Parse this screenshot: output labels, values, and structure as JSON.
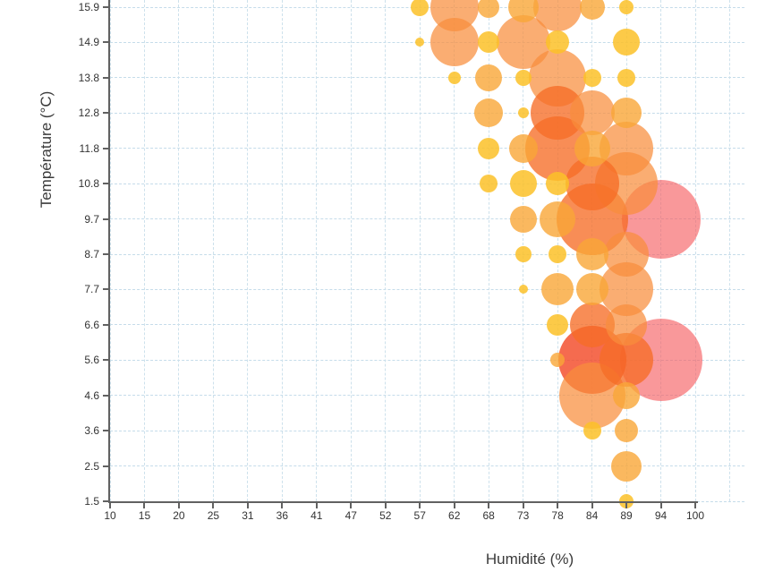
{
  "chart": {
    "type": "bubble",
    "x_axis": {
      "title": "Humidité (%)"
    },
    "y_axis": {
      "title": "Température (°C)"
    },
    "colors": {
      "gold": "rgba(251,193,40,0.85)",
      "orange": "rgba(249,166,55,0.8)",
      "bigOrange": "rgba(248,142,60,0.72)",
      "deepOrange": "rgba(246,109,38,0.78)",
      "redOrange": "rgba(242,70,35,0.8)",
      "salmon": "rgba(246,88,92,0.62)"
    },
    "grid_color": "#c5dcea",
    "axis_color": "#616161"
  },
  "chart_data": {
    "type": "scatter",
    "title": "",
    "xlabel": "Humidité (%)",
    "ylabel": "Température (°C)",
    "x_tick_values": [
      10,
      15,
      20,
      25,
      31,
      36,
      41,
      47,
      52,
      57,
      62,
      68,
      73,
      78,
      84,
      89,
      94,
      100
    ],
    "y_tick_values": [
      15.9,
      14.9,
      13.8,
      12.8,
      11.8,
      10.8,
      9.7,
      8.7,
      7.7,
      6.6,
      5.6,
      4.6,
      3.6,
      2.5,
      1.5
    ],
    "x_tick_labels": [
      "10",
      "15",
      "20",
      "25",
      "31",
      "36",
      "41",
      "47",
      "52",
      "57",
      "62",
      "68",
      "73",
      "78",
      "84",
      "89",
      "94",
      "100"
    ],
    "y_tick_labels": [
      "15.9",
      "14.9",
      "13.8",
      "12.8",
      "11.8",
      "10.8",
      "9.7",
      "8.7",
      "7.7",
      "6.6",
      "5.6",
      "4.6",
      "3.6",
      "2.5",
      "1.5"
    ],
    "xlim": [
      10,
      100
    ],
    "ylim": [
      1.5,
      15.9
    ],
    "grid": true,
    "legend": false,
    "points": [
      {
        "x": 57,
        "y": 15.9,
        "r": 10,
        "c": "gold"
      },
      {
        "x": 62,
        "y": 15.9,
        "r": 27,
        "c": "bigOrange"
      },
      {
        "x": 68,
        "y": 15.9,
        "r": 12,
        "c": "orange"
      },
      {
        "x": 73,
        "y": 15.9,
        "r": 17,
        "c": "orange"
      },
      {
        "x": 78,
        "y": 15.9,
        "r": 27,
        "c": "bigOrange"
      },
      {
        "x": 84,
        "y": 15.9,
        "r": 14,
        "c": "orange"
      },
      {
        "x": 89,
        "y": 15.9,
        "r": 8,
        "c": "gold"
      },
      {
        "x": 57,
        "y": 14.9,
        "r": 5,
        "c": "gold"
      },
      {
        "x": 62,
        "y": 14.9,
        "r": 27,
        "c": "bigOrange"
      },
      {
        "x": 68,
        "y": 14.9,
        "r": 12,
        "c": "gold"
      },
      {
        "x": 73,
        "y": 14.9,
        "r": 30,
        "c": "bigOrange"
      },
      {
        "x": 78,
        "y": 14.9,
        "r": 13,
        "c": "gold"
      },
      {
        "x": 89,
        "y": 14.9,
        "r": 15,
        "c": "gold"
      },
      {
        "x": 62,
        "y": 13.8,
        "r": 7,
        "c": "gold"
      },
      {
        "x": 68,
        "y": 13.8,
        "r": 15,
        "c": "orange"
      },
      {
        "x": 73,
        "y": 13.8,
        "r": 9,
        "c": "gold"
      },
      {
        "x": 78,
        "y": 13.8,
        "r": 32,
        "c": "bigOrange"
      },
      {
        "x": 84,
        "y": 13.8,
        "r": 10,
        "c": "gold"
      },
      {
        "x": 89,
        "y": 13.8,
        "r": 10,
        "c": "gold"
      },
      {
        "x": 68,
        "y": 12.8,
        "r": 16,
        "c": "orange"
      },
      {
        "x": 73,
        "y": 12.8,
        "r": 6,
        "c": "gold"
      },
      {
        "x": 78,
        "y": 12.8,
        "r": 30,
        "c": "deepOrange"
      },
      {
        "x": 84,
        "y": 12.8,
        "r": 25,
        "c": "bigOrange"
      },
      {
        "x": 89,
        "y": 12.8,
        "r": 17,
        "c": "orange"
      },
      {
        "x": 68,
        "y": 11.8,
        "r": 12,
        "c": "gold"
      },
      {
        "x": 73,
        "y": 11.8,
        "r": 16,
        "c": "orange"
      },
      {
        "x": 78,
        "y": 11.8,
        "r": 36,
        "c": "deepOrange"
      },
      {
        "x": 84,
        "y": 11.8,
        "r": 20,
        "c": "orange"
      },
      {
        "x": 89,
        "y": 11.8,
        "r": 30,
        "c": "bigOrange"
      },
      {
        "x": 68,
        "y": 10.8,
        "r": 10,
        "c": "gold"
      },
      {
        "x": 73,
        "y": 10.8,
        "r": 15,
        "c": "gold"
      },
      {
        "x": 78,
        "y": 10.8,
        "r": 13,
        "c": "gold"
      },
      {
        "x": 84,
        "y": 10.8,
        "r": 30,
        "c": "deepOrange"
      },
      {
        "x": 89,
        "y": 10.8,
        "r": 35,
        "c": "bigOrange"
      },
      {
        "x": 73,
        "y": 9.7,
        "r": 15,
        "c": "orange"
      },
      {
        "x": 78,
        "y": 9.7,
        "r": 20,
        "c": "orange"
      },
      {
        "x": 84,
        "y": 9.7,
        "r": 40,
        "c": "deepOrange"
      },
      {
        "x": 94,
        "y": 9.7,
        "r": 44,
        "c": "salmon"
      },
      {
        "x": 73,
        "y": 8.7,
        "r": 9,
        "c": "gold"
      },
      {
        "x": 78,
        "y": 8.7,
        "r": 10,
        "c": "gold"
      },
      {
        "x": 84,
        "y": 8.7,
        "r": 18,
        "c": "orange"
      },
      {
        "x": 89,
        "y": 8.7,
        "r": 25,
        "c": "bigOrange"
      },
      {
        "x": 73,
        "y": 7.7,
        "r": 5,
        "c": "gold"
      },
      {
        "x": 78,
        "y": 7.7,
        "r": 18,
        "c": "orange"
      },
      {
        "x": 84,
        "y": 7.7,
        "r": 18,
        "c": "orange"
      },
      {
        "x": 89,
        "y": 7.7,
        "r": 30,
        "c": "bigOrange"
      },
      {
        "x": 78,
        "y": 6.6,
        "r": 12,
        "c": "gold"
      },
      {
        "x": 84,
        "y": 6.6,
        "r": 25,
        "c": "deepOrange"
      },
      {
        "x": 89,
        "y": 6.6,
        "r": 23,
        "c": "bigOrange"
      },
      {
        "x": 78,
        "y": 5.6,
        "r": 8,
        "c": "orange"
      },
      {
        "x": 84,
        "y": 5.6,
        "r": 38,
        "c": "redOrange"
      },
      {
        "x": 89,
        "y": 5.6,
        "r": 30,
        "c": "deepOrange"
      },
      {
        "x": 94,
        "y": 5.6,
        "r": 46,
        "c": "salmon"
      },
      {
        "x": 84,
        "y": 4.6,
        "r": 37,
        "c": "bigOrange"
      },
      {
        "x": 89,
        "y": 4.6,
        "r": 15,
        "c": "orange"
      },
      {
        "x": 84,
        "y": 3.6,
        "r": 10,
        "c": "gold"
      },
      {
        "x": 89,
        "y": 3.6,
        "r": 13,
        "c": "orange"
      },
      {
        "x": 89,
        "y": 2.5,
        "r": 17,
        "c": "orange"
      },
      {
        "x": 89,
        "y": 1.5,
        "r": 8,
        "c": "gold"
      }
    ]
  }
}
